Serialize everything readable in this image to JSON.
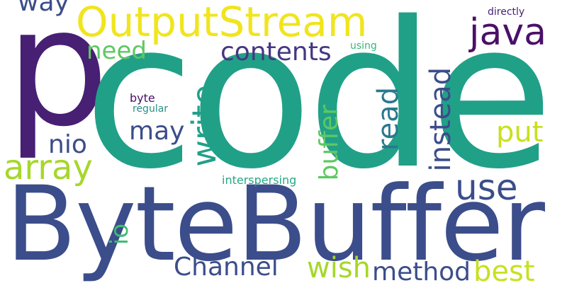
{
  "wordcloud": {
    "words": {
      "code": {
        "text": "code",
        "color": "#21a088"
      },
      "p": {
        "text": "p",
        "color": "#471f73"
      },
      "bytebuffer": {
        "text": "ByteBuffer",
        "color": "#3b4d8a"
      },
      "outputstream": {
        "text": "OutputStream",
        "color": "#f0e51e"
      },
      "java": {
        "text": "java",
        "color": "#4a1068"
      },
      "way": {
        "text": "way",
        "color": "#3b4d8a"
      },
      "need": {
        "text": "need",
        "color": "#5ec863"
      },
      "contents": {
        "text": "contents",
        "color": "#453781"
      },
      "using": {
        "text": "using",
        "color": "#35b779"
      },
      "directly": {
        "text": "directly",
        "color": "#471f73"
      },
      "byte": {
        "text": "byte",
        "color": "#4a1068"
      },
      "regular": {
        "text": "regular",
        "color": "#2a9086"
      },
      "may": {
        "text": "may",
        "color": "#3b4d8a"
      },
      "nio": {
        "text": "nio",
        "color": "#3b4d8a"
      },
      "array": {
        "text": "array",
        "color": "#a6d72b"
      },
      "use": {
        "text": "use",
        "color": "#3b4d8a"
      },
      "put": {
        "text": "put",
        "color": "#c8e020"
      },
      "interspersing": {
        "text": "interspersing",
        "color": "#25a884"
      },
      "channel": {
        "text": "Channel",
        "color": "#3b4d8a"
      },
      "wish": {
        "text": "wish",
        "color": "#a6d72b"
      },
      "method": {
        "text": "method",
        "color": "#3b4d8a"
      },
      "best": {
        "text": "best",
        "color": "#c8e020"
      },
      "write": {
        "text": "write",
        "color": "#21a088"
      },
      "buffer": {
        "text": "buffer",
        "color": "#5ec863"
      },
      "read": {
        "text": "read",
        "color": "#2a788e"
      },
      "instead": {
        "text": "instead",
        "color": "#3b4d8a"
      },
      "io": {
        "text": "io",
        "color": "#3fbc73"
      }
    }
  }
}
